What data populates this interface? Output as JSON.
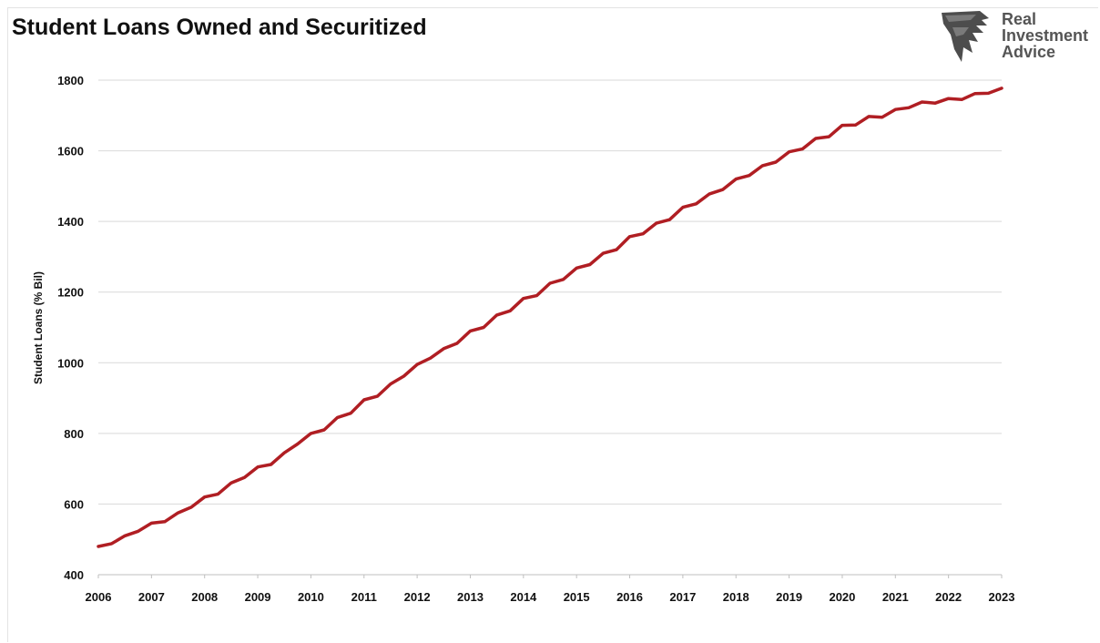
{
  "title": "Student Loans Owned and Securitized",
  "logo": {
    "lines": [
      "Real",
      "Investment",
      "Advice"
    ],
    "icon": "eagle-head-icon"
  },
  "colors": {
    "line": "#b01e23",
    "grid": "#d9d9d9",
    "text": "#111111"
  },
  "chart_data": {
    "type": "line",
    "title": "Student Loans Owned and Securitized",
    "xlabel": "",
    "ylabel": "Student Loans (% Bil)",
    "ylim": [
      400,
      1800
    ],
    "yticks": [
      400,
      600,
      800,
      1000,
      1200,
      1400,
      1600,
      1800
    ],
    "xlim": [
      2006,
      2023
    ],
    "xticks": [
      "2006",
      "2007",
      "2008",
      "2009",
      "2010",
      "2011",
      "2012",
      "2013",
      "2014",
      "2015",
      "2016",
      "2017",
      "2018",
      "2019",
      "2020",
      "2021",
      "2022",
      "2023"
    ],
    "grid": "horizontal",
    "legend": "none",
    "series": [
      {
        "x": [
          2006.0,
          2006.25,
          2006.5,
          2006.75,
          2007.0,
          2007.25,
          2007.5,
          2007.75,
          2008.0,
          2008.25,
          2008.5,
          2008.75,
          2009.0,
          2009.25,
          2009.5,
          2009.75,
          2010.0,
          2010.25,
          2010.5,
          2010.75,
          2011.0,
          2011.25,
          2011.5,
          2011.75,
          2012.0,
          2012.25,
          2012.5,
          2012.75,
          2013.0,
          2013.25,
          2013.5,
          2013.75,
          2014.0,
          2014.25,
          2014.5,
          2014.75,
          2015.0,
          2015.25,
          2015.5,
          2015.75,
          2016.0,
          2016.25,
          2016.5,
          2016.75,
          2017.0,
          2017.25,
          2017.5,
          2017.75,
          2018.0,
          2018.25,
          2018.5,
          2018.75,
          2019.0,
          2019.25,
          2019.5,
          2019.75,
          2020.0,
          2020.25,
          2020.5,
          2020.75,
          2021.0,
          2021.25,
          2021.5,
          2021.75,
          2022.0,
          2022.25,
          2022.5,
          2022.75,
          2023.0
        ],
        "y": [
          480,
          488,
          510,
          523,
          546,
          550,
          575,
          591,
          620,
          628,
          660,
          675,
          705,
          712,
          745,
          770,
          800,
          810,
          845,
          857,
          895,
          905,
          940,
          962,
          995,
          1013,
          1040,
          1055,
          1090,
          1100,
          1135,
          1147,
          1182,
          1190,
          1225,
          1236,
          1268,
          1278,
          1310,
          1320,
          1357,
          1365,
          1395,
          1405,
          1440,
          1450,
          1478,
          1490,
          1520,
          1530,
          1558,
          1568,
          1597,
          1605,
          1635,
          1640,
          1672,
          1673,
          1697,
          1695,
          1717,
          1722,
          1738,
          1735,
          1748,
          1745,
          1762,
          1763,
          1777
        ]
      }
    ]
  }
}
